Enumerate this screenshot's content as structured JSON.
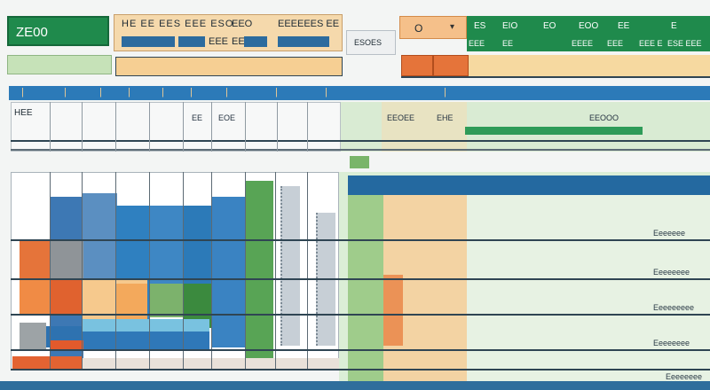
{
  "colors": {
    "green": "#1f8a4c",
    "blue": "#2c7ab8",
    "orange": "#e5743a",
    "peach": "#f6cf93",
    "light_green": "#c6e2b8",
    "gray": "#8f9498",
    "page": "#f3f5f4"
  },
  "toolbar": {
    "app_badge": "ZE00",
    "ribbon_row1": "HE EE EES EEE ESO",
    "ribbon_row1_b": "EEO",
    "ribbon_row1_c": "EEEEEES EE",
    "ribbon_row2": "EEE",
    "ribbon_row2_b": "EEE",
    "ribbon_row2_c": "EEEEE",
    "name_box": "ESOES",
    "slot_value": "O",
    "slot_icon": "caret-icon",
    "green_tabs": [
      "ES",
      "EIO",
      "EO",
      "EOO",
      "EE",
      "E"
    ],
    "green_tabs_row2": [
      "EEE",
      "EE",
      "EEEE",
      "EEE",
      "EEE E",
      "ESE EEE"
    ]
  },
  "column_header": {
    "ticks": [
      "|",
      "|",
      "|",
      "|",
      "|",
      "|",
      "|",
      "|",
      "|",
      "|"
    ]
  },
  "sheet": {
    "top_left_label": "HEE",
    "small_labels": [
      "EE",
      "EOE"
    ],
    "right_label_a": "EEOEE",
    "right_label_b": "EHE",
    "right_label_c": "EEOOO"
  },
  "summary_labels": [
    "Eeeeeee",
    "Eeeeeeee",
    "Eeeeeeeee",
    "Eeeeeeee",
    "Eeeeeeee"
  ]
}
